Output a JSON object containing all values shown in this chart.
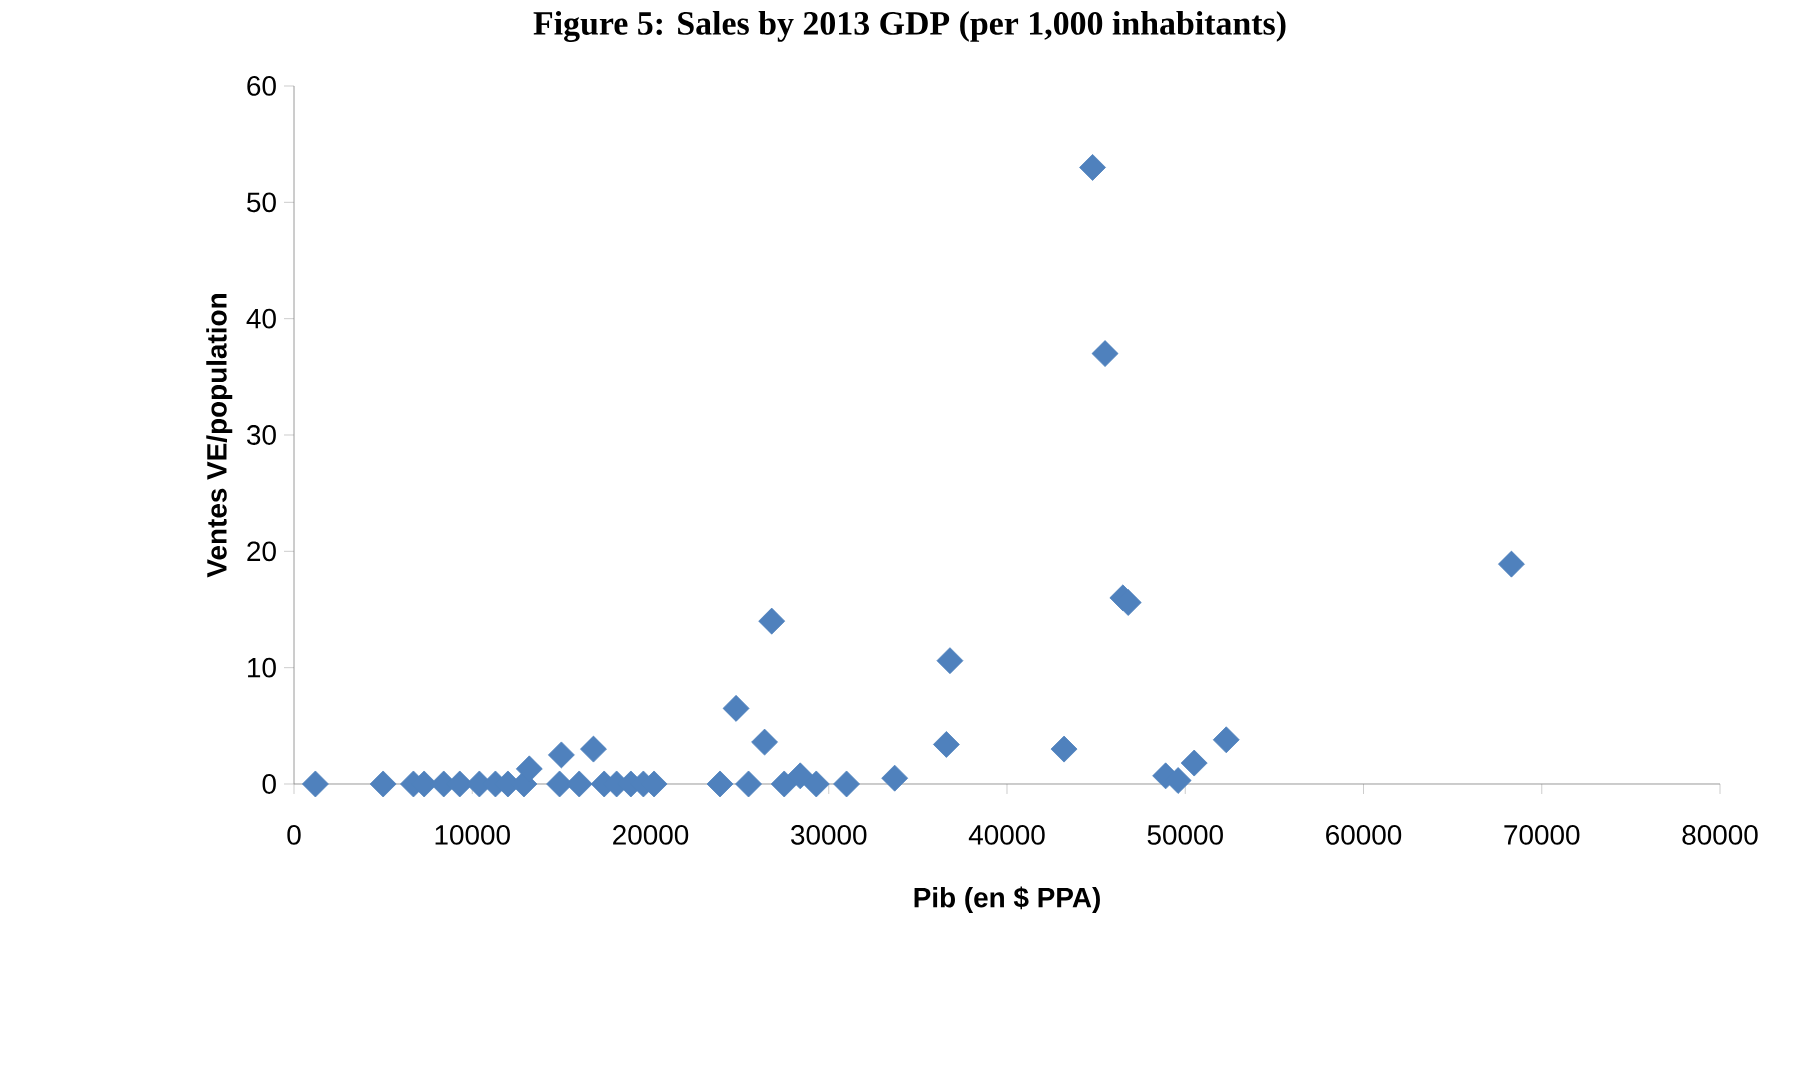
{
  "chart_data": {
    "type": "scatter",
    "title": "Figure 5: Sales by 2013 GDP (per 1,000 inhabitants)",
    "xlabel": "Pib (en $ PPA)",
    "ylabel": "Ventes VE/population",
    "x": [
      1200,
      5000,
      6700,
      7300,
      8400,
      9300,
      10400,
      11300,
      12000,
      12900,
      13200,
      14900,
      15000,
      16000,
      16800,
      17400,
      18100,
      18900,
      19600,
      20200,
      23900,
      24800,
      25500,
      26400,
      26800,
      27500,
      28400,
      29300,
      31000,
      33700,
      36600,
      36800,
      43200,
      44800,
      45500,
      46500,
      46800,
      48900,
      49600,
      50500,
      52300,
      68300
    ],
    "values": [
      0,
      0,
      0,
      0,
      0,
      0,
      0,
      0,
      0,
      0,
      1.3,
      0,
      2.5,
      0,
      3,
      0,
      0,
      0,
      0,
      0,
      0,
      6.5,
      0,
      3.6,
      14,
      0,
      0.7,
      0,
      0,
      0.5,
      3.4,
      10.6,
      3,
      53,
      37,
      16,
      15.6,
      0.7,
      0.3,
      1.8,
      3.8,
      18.9
    ],
    "color": "#4f81bd",
    "marker": "diamond",
    "grid": false,
    "xlim": [
      0,
      80000
    ],
    "ylim": [
      0,
      60
    ],
    "xticks": [
      0,
      10000,
      20000,
      30000,
      40000,
      50000,
      60000,
      70000,
      80000
    ],
    "yticks": [
      0,
      10,
      20,
      30,
      40,
      50,
      60
    ]
  }
}
